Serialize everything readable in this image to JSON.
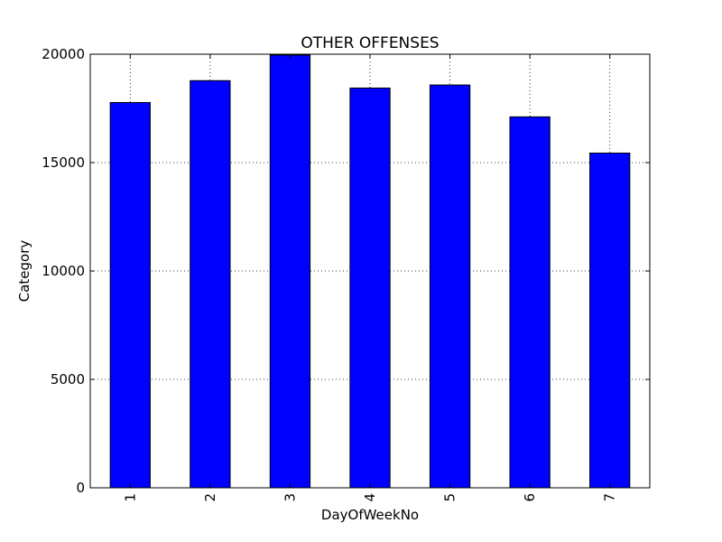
{
  "chart_data": {
    "type": "bar",
    "title": "OTHER OFFENSES",
    "xlabel": "DayOfWeekNo",
    "ylabel": "Category",
    "categories": [
      "1",
      "2",
      "3",
      "4",
      "5",
      "6",
      "7"
    ],
    "values": [
      17770,
      18780,
      19960,
      18440,
      18580,
      17110,
      15440
    ],
    "ylim": [
      0,
      20000
    ],
    "yticks": [
      "0",
      "5000",
      "10000",
      "15000",
      "20000"
    ],
    "grid": true,
    "bar_color": "#0000ff",
    "legend": "none"
  }
}
